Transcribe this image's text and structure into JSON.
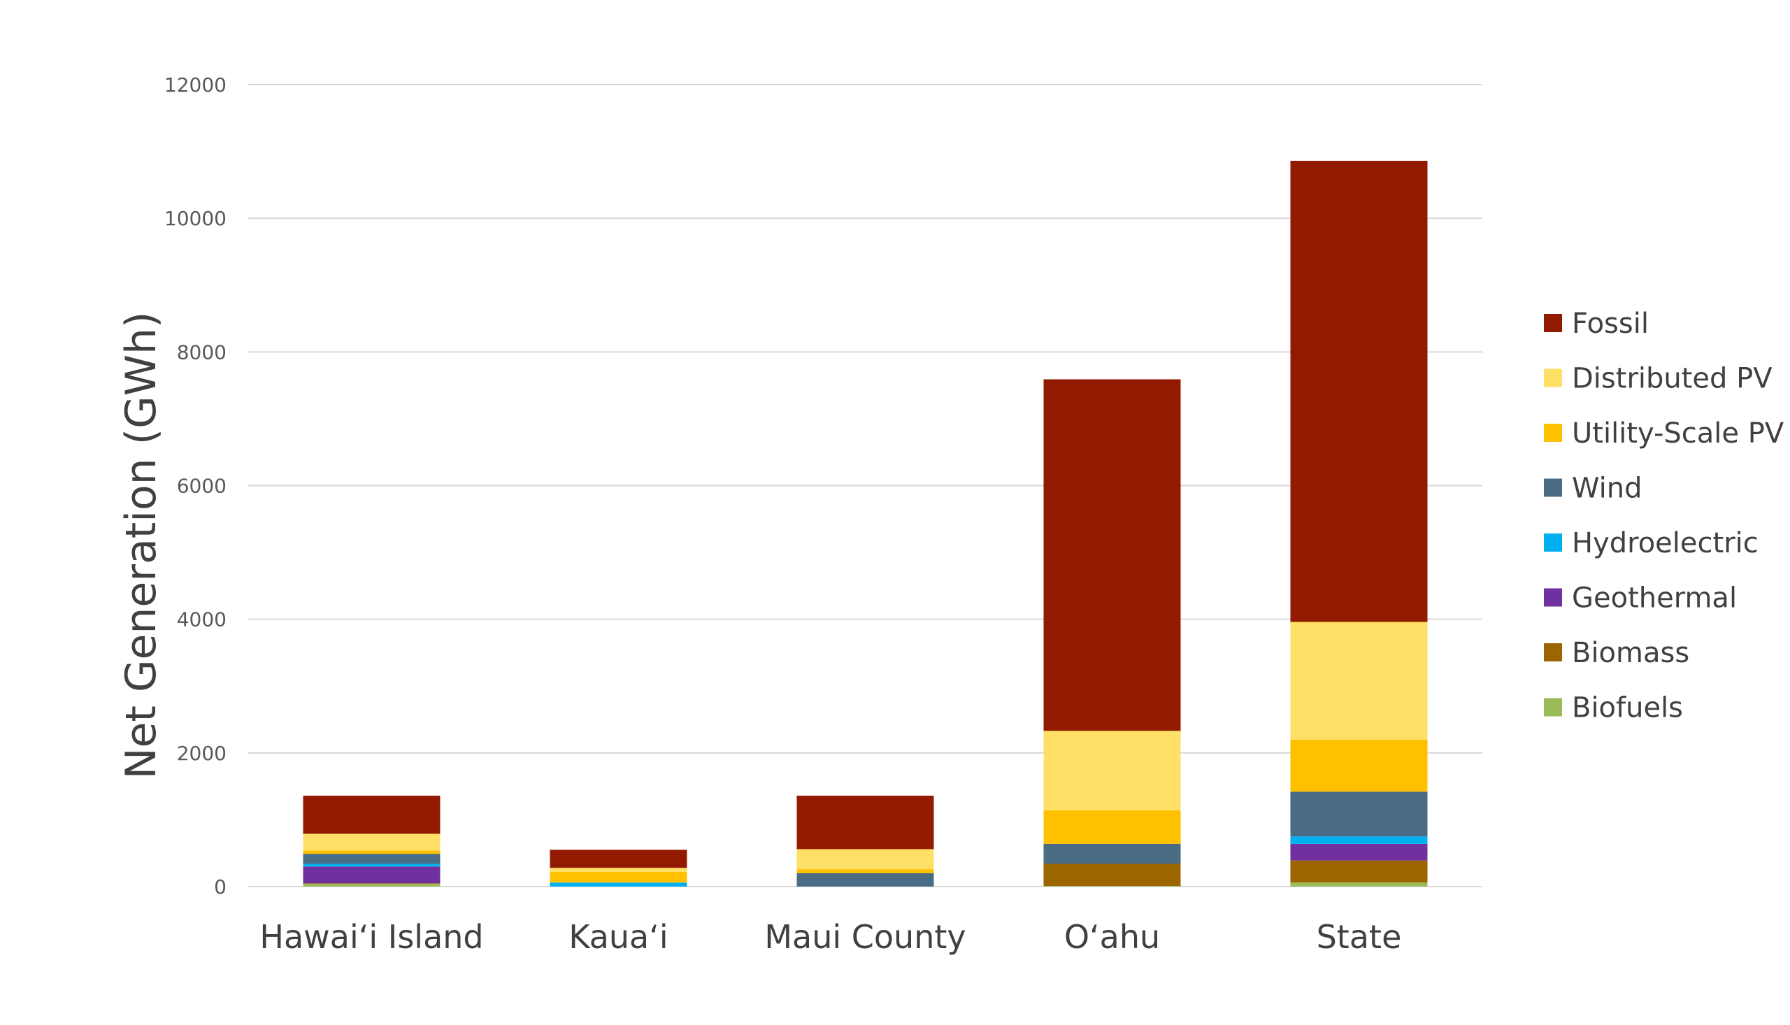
{
  "chart_data": {
    "type": "bar",
    "stacked": true,
    "title": "",
    "xlabel": "",
    "ylabel": "Net Generation (GWh)",
    "ylim": [
      0,
      12000
    ],
    "yticks": [
      0,
      2000,
      4000,
      6000,
      8000,
      10000,
      12000
    ],
    "grid": true,
    "legend_position": "right",
    "categories": [
      "Hawaiʻi Island",
      "Kauaʻi",
      "Maui County",
      "Oʻahu",
      "State"
    ],
    "series": [
      {
        "name": "Biofuels",
        "color": "#9BBB59",
        "values": [
          40,
          0,
          0,
          10,
          60
        ]
      },
      {
        "name": "Biomass",
        "color": "#9C6500",
        "values": [
          10,
          0,
          0,
          330,
          330
        ]
      },
      {
        "name": "Geothermal",
        "color": "#7030A0",
        "values": [
          250,
          0,
          0,
          0,
          250
        ]
      },
      {
        "name": "Hydroelectric",
        "color": "#00B0F0",
        "values": [
          40,
          60,
          0,
          0,
          110
        ]
      },
      {
        "name": "Wind",
        "color": "#4A6C85",
        "values": [
          150,
          0,
          200,
          300,
          670
        ]
      },
      {
        "name": "Utility-Scale PV",
        "color": "#FFC000",
        "values": [
          50,
          160,
          60,
          500,
          780
        ]
      },
      {
        "name": "Distributed PV",
        "color": "#FFE066",
        "values": [
          250,
          60,
          300,
          1190,
          1760
        ]
      },
      {
        "name": "Fossil",
        "color": "#921A00",
        "values": [
          570,
          270,
          800,
          5260,
          6900
        ]
      }
    ]
  }
}
